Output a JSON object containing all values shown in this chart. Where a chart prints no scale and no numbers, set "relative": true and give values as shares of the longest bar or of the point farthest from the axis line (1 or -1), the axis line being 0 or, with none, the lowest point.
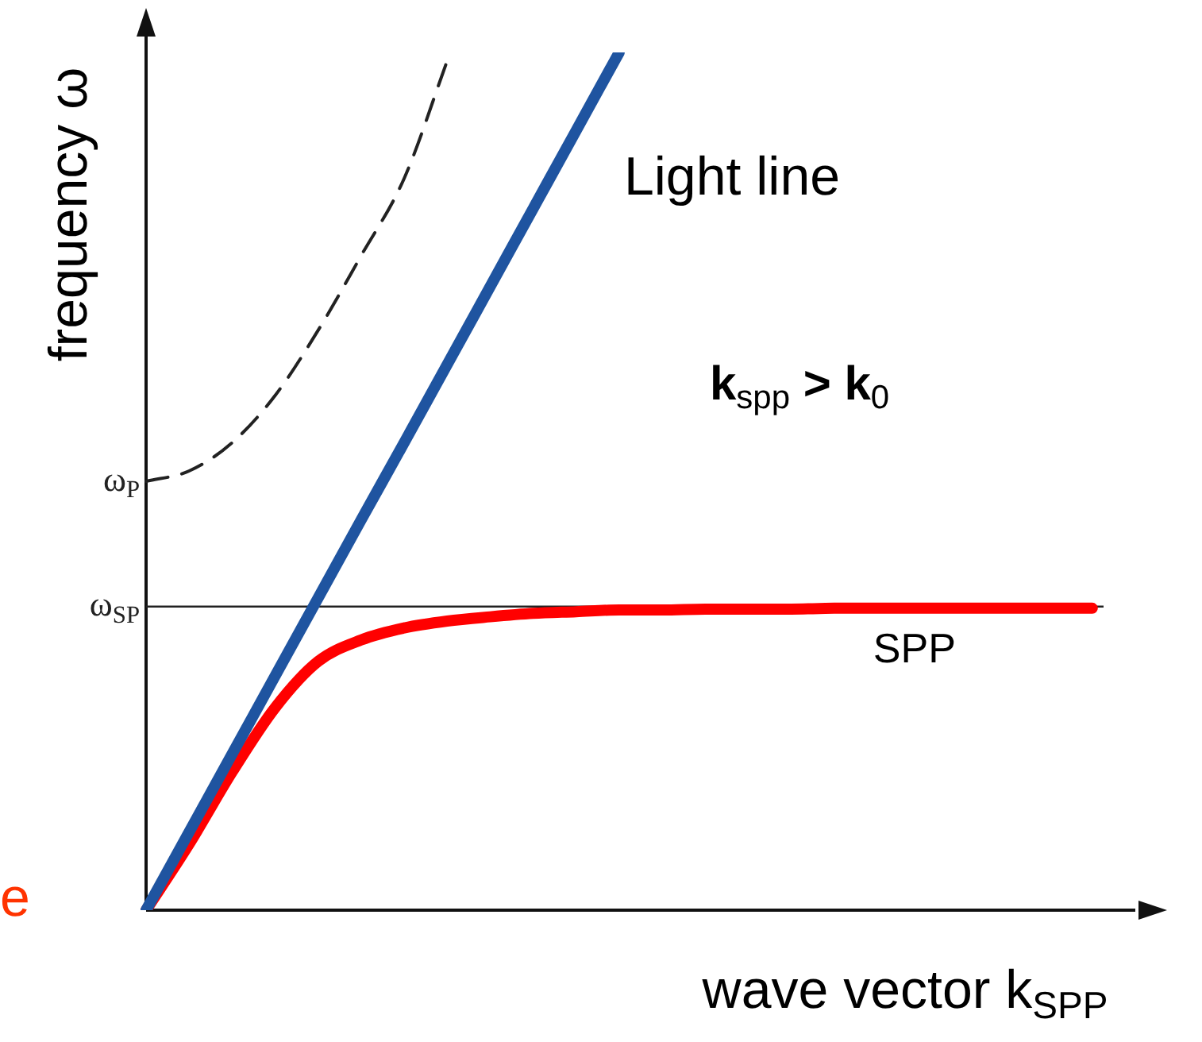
{
  "chart_data": {
    "type": "line",
    "relative": true,
    "xlabel": "wave vector k$_{SPP}$",
    "ylabel": "frequency ω",
    "legend": false,
    "categories": [
      null,
      null,
      null,
      null,
      null,
      null,
      null,
      null,
      null,
      null,
      null,
      null,
      null,
      null,
      null,
      null,
      null,
      null,
      null,
      null,
      null,
      null,
      null,
      null
    ],
    "series": [
      {
        "name": "Light line",
        "color": "#1f54a0",
        "values": [
          0,
          0.091,
          0.182,
          0.273,
          0.364,
          0.455,
          0.545,
          0.636,
          0.727,
          0.818,
          0.909,
          1,
          null,
          null,
          null,
          null,
          null,
          null,
          null,
          null,
          null,
          null,
          null,
          null
        ]
      },
      {
        "name": "SPP",
        "color": "#ff0000",
        "values": [
          0,
          0.077,
          0.161,
          0.236,
          0.29,
          0.315,
          0.329,
          0.337,
          0.342,
          0.346,
          0.348,
          0.35,
          0.35,
          0.351,
          0.351,
          0.351,
          0.352,
          0.352,
          0.352,
          0.352,
          0.352,
          0.352,
          0.352,
          null
        ]
      },
      {
        "color": "#222222",
        "line_style": "dashed",
        "values": [
          0.5,
          0.512,
          0.545,
          0.6,
          0.676,
          0.763,
          0.853,
          0.99,
          null,
          null,
          null,
          null,
          null,
          null,
          null,
          null,
          null,
          null,
          null,
          null,
          null,
          null,
          null,
          null
        ]
      }
    ],
    "ref_lines": [
      {
        "axis": "y",
        "value": 0.354,
        "label": "ω$_{SP}$",
        "color": "#222222"
      }
    ],
    "annotations": [
      "ω$_{P}$",
      "k$_{spp}$ > k$_{0}$",
      "e"
    ]
  }
}
